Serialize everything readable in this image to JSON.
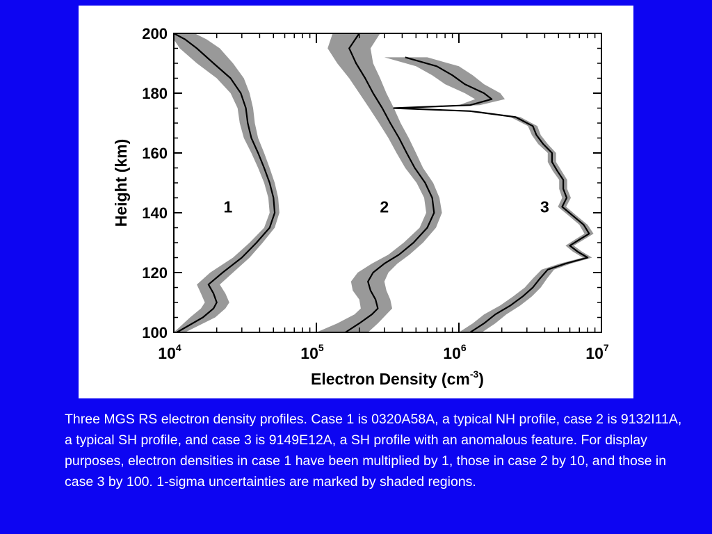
{
  "caption": "Three MGS RS electron density profiles. Case 1 is 0320A58A, a typical NH profile, case 2 is 9132I11A, a typical SH profile, and case 3 is 9149E12A, a SH profile with an anomalous feature. For display purposes, electron densities in case 1 have been multiplied by 1, those in case 2 by 10, and those in case 3 by 100. 1-sigma uncertainties are marked by shaded regions.",
  "colors": {
    "background": "#0d05f2",
    "panel": "#ffffff",
    "line": "#000000",
    "uncertainty": "#999999"
  },
  "chart_data": {
    "type": "line",
    "xlabel": "Electron Density (cm",
    "xlabel_sup": "-3",
    "xlabel_tail": ")",
    "ylabel": "Height (km)",
    "xscale": "log",
    "xlim": [
      10000,
      10000000
    ],
    "ylim": [
      100,
      200
    ],
    "x_ticks": [
      {
        "base": "10",
        "exp": "4",
        "value": 10000
      },
      {
        "base": "10",
        "exp": "5",
        "value": 100000
      },
      {
        "base": "10",
        "exp": "6",
        "value": 1000000
      },
      {
        "base": "10",
        "exp": "7",
        "value": 10000000
      }
    ],
    "y_ticks": [
      "100",
      "120",
      "140",
      "160",
      "180",
      "200"
    ],
    "y_tick_values": [
      100,
      120,
      140,
      160,
      180,
      200
    ],
    "grid": false,
    "series": [
      {
        "name": "1",
        "label_at": [
          24000,
          142
        ],
        "height": [
          100,
          105,
          108,
          110,
          113,
          116,
          120,
          125,
          130,
          135,
          140,
          145,
          150,
          155,
          160,
          165,
          170,
          175,
          180,
          185,
          190,
          195,
          198,
          200
        ],
        "density": [
          10500,
          16000,
          19000,
          20000,
          19000,
          17500,
          22000,
          30000,
          38000,
          47000,
          51000,
          50000,
          47000,
          43000,
          39000,
          35000,
          33000,
          32000,
          29500,
          25000,
          19000,
          14500,
          12000,
          10000
        ],
        "lower": [
          10000,
          13000,
          15500,
          16500,
          15500,
          14500,
          18000,
          26000,
          34000,
          43000,
          47000,
          46000,
          43000,
          39000,
          35000,
          31000,
          29000,
          28000,
          25000,
          20000,
          14500,
          11000,
          10000,
          10000
        ],
        "upper": [
          12000,
          19500,
          23000,
          24500,
          23000,
          21000,
          26000,
          34000,
          42000,
          51000,
          55000,
          54000,
          51000,
          47000,
          43000,
          39000,
          37000,
          36000,
          34000,
          31000,
          26000,
          21000,
          17000,
          14000
        ]
      },
      {
        "name": "2",
        "label_at": [
          300000,
          142
        ],
        "height": [
          100,
          103,
          106,
          108,
          111,
          114,
          117,
          120,
          123,
          126,
          130,
          135,
          140,
          145,
          150,
          155,
          160,
          165,
          170,
          175,
          180,
          185,
          190,
          195,
          200
        ],
        "density": [
          160000,
          200000,
          245000,
          270000,
          260000,
          240000,
          230000,
          250000,
          300000,
          380000,
          480000,
          600000,
          670000,
          650000,
          580000,
          490000,
          430000,
          380000,
          330000,
          290000,
          250000,
          220000,
          190000,
          170000,
          200000
        ],
        "lower": [
          100000,
          140000,
          185000,
          205000,
          200000,
          180000,
          175000,
          195000,
          245000,
          320000,
          410000,
          530000,
          590000,
          570000,
          505000,
          420000,
          365000,
          320000,
          275000,
          235000,
          200000,
          170000,
          140000,
          120000,
          130000
        ],
        "upper": [
          230000,
          270000,
          310000,
          340000,
          330000,
          310000,
          300000,
          320000,
          370000,
          450000,
          560000,
          690000,
          760000,
          730000,
          660000,
          560000,
          500000,
          445000,
          390000,
          350000,
          310000,
          280000,
          250000,
          240000,
          280000
        ]
      },
      {
        "name": "3",
        "label_at": [
          4000000,
          142
        ],
        "height": [
          100,
          103,
          106,
          109,
          112,
          115,
          118,
          121,
          123,
          125,
          127,
          129,
          131,
          133,
          136,
          139,
          142,
          145,
          148,
          151,
          154,
          157,
          160,
          163,
          166,
          169,
          172,
          174,
          175,
          176,
          178,
          180,
          183,
          186,
          189,
          192
        ],
        "density": [
          1200000,
          1500000,
          1800000,
          2300000,
          2800000,
          3300000,
          3700000,
          4200000,
          5600000,
          8000000,
          6800000,
          6000000,
          7000000,
          8200000,
          7500000,
          6300000,
          5300000,
          5700000,
          5400000,
          5400000,
          4900000,
          4500000,
          4500000,
          3900000,
          3500000,
          3300000,
          2500000,
          1200000,
          350000,
          1200000,
          1700000,
          1500000,
          1100000,
          900000,
          700000,
          420000
        ],
        "lower": [
          1000000,
          1250000,
          1500000,
          1950000,
          2400000,
          2900000,
          3300000,
          3800000,
          5100000,
          7400000,
          6300000,
          5600000,
          6500000,
          7600000,
          7000000,
          5900000,
          4950000,
          5300000,
          5050000,
          5050000,
          4550000,
          4200000,
          4200000,
          3600000,
          3250000,
          3050000,
          2300000,
          1100000,
          320000,
          1000000,
          1300000,
          1100000,
          800000,
          650000,
          500000,
          300000
        ],
        "upper": [
          1450000,
          1800000,
          2150000,
          2700000,
          3250000,
          3750000,
          4150000,
          4650000,
          6100000,
          8600000,
          7300000,
          6400000,
          7500000,
          8800000,
          8000000,
          6700000,
          5650000,
          6100000,
          5750000,
          5750000,
          5250000,
          4800000,
          4800000,
          4200000,
          3750000,
          3550000,
          2700000,
          1350000,
          400000,
          1400000,
          2100000,
          1950000,
          1500000,
          1250000,
          1000000,
          600000
        ]
      }
    ]
  }
}
